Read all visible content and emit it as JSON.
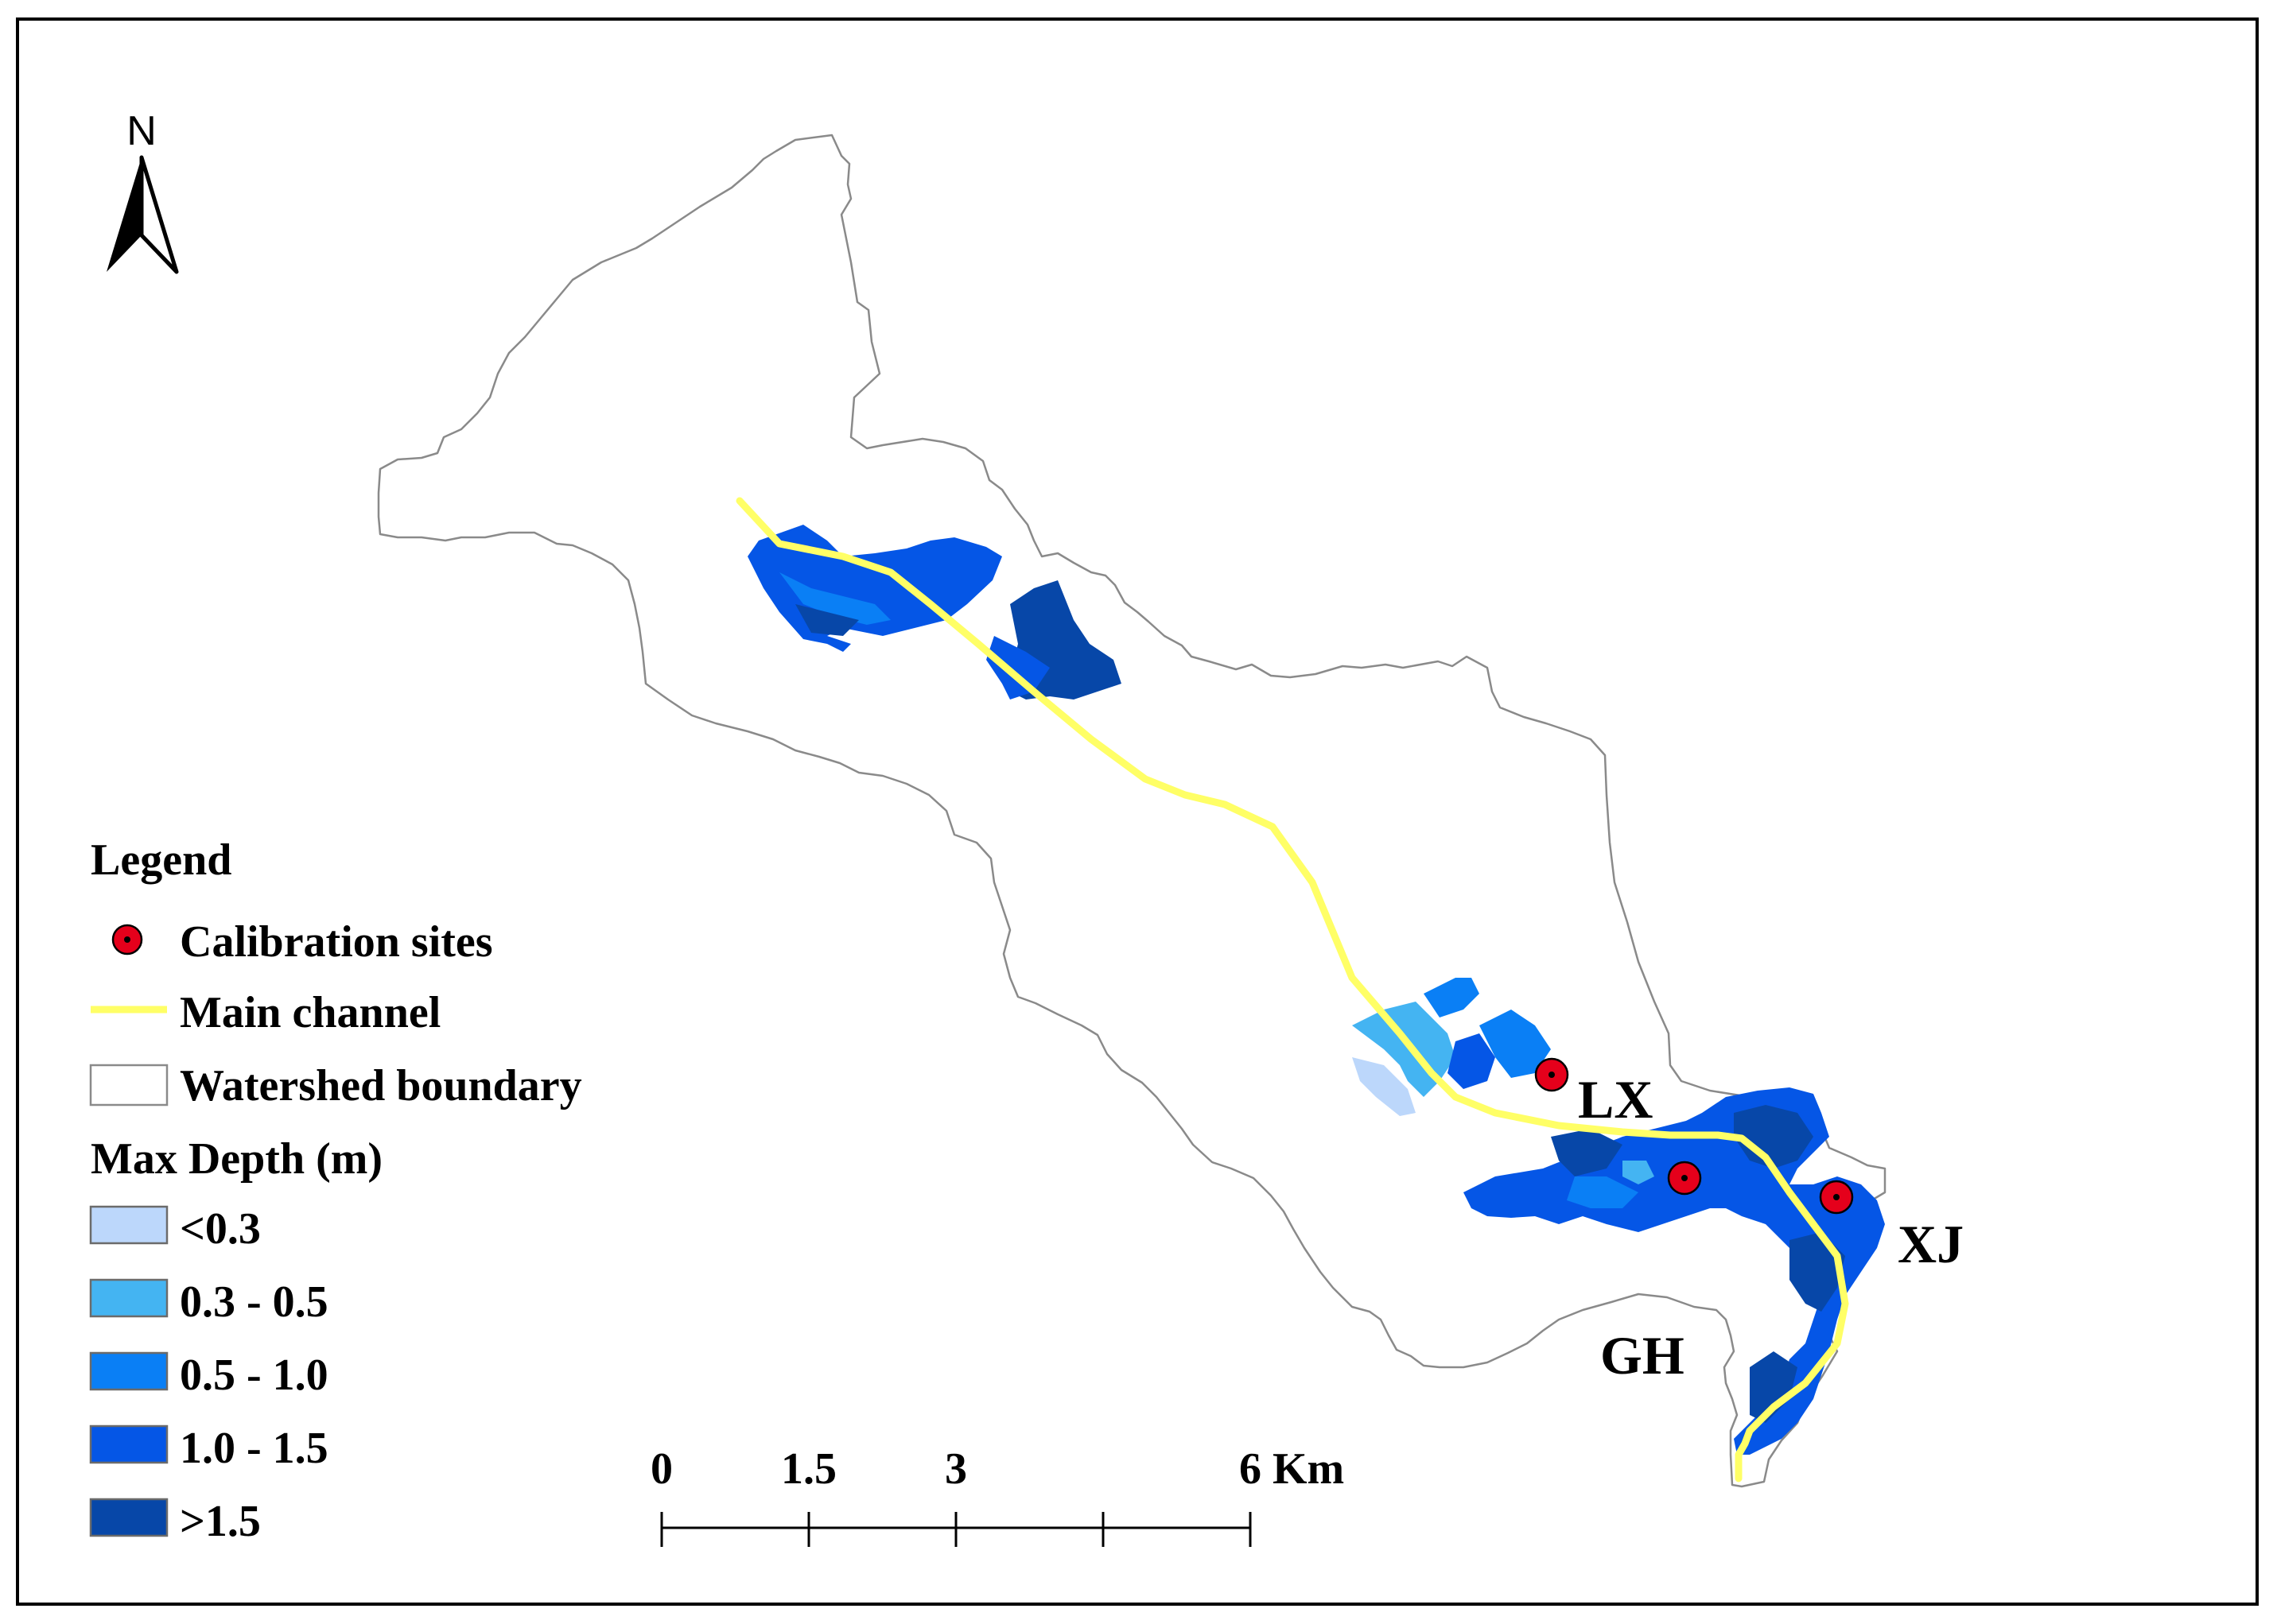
{
  "north_arrow": {
    "label": "N"
  },
  "legend": {
    "title": "Legend",
    "items": [
      {
        "label": "Calibration sites",
        "symbol": "red-dot-marker"
      },
      {
        "label": "Main channel",
        "symbol": "yellow-line",
        "color": "#ffff66"
      },
      {
        "label": "Watershed boundary",
        "symbol": "outline-box"
      }
    ],
    "depth_title": "Max Depth (m)",
    "depth_classes": [
      {
        "label": "<0.3",
        "color": "#bcd7fb"
      },
      {
        "label": "0.3 - 0.5",
        "color": "#44b4f2"
      },
      {
        "label": "0.5 - 1.0",
        "color": "#0a7ff5"
      },
      {
        "label": "1.0 - 1.5",
        "color": "#0556e6"
      },
      {
        "label": ">1.5",
        "color": "#0747a8"
      }
    ]
  },
  "sites": [
    {
      "label": "LX"
    },
    {
      "label": "GH"
    },
    {
      "label": "XJ"
    }
  ],
  "scale_bar": {
    "ticks": [
      "0",
      "1.5",
      "3",
      "6 Km"
    ]
  }
}
